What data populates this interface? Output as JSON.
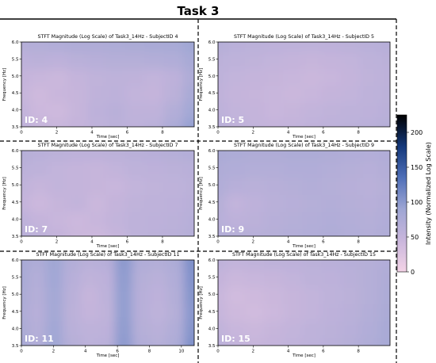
{
  "figure": {
    "title": "Task 3",
    "colorbar": {
      "label": "Intensity (Normalized Log Scale)",
      "min": 0,
      "max": 225,
      "ticks": [
        0,
        50,
        100,
        150,
        200
      ],
      "colors": [
        "#f3d3e6",
        "#c9b6dc",
        "#9ea6d4",
        "#4f6fb8",
        "#14387a",
        "#000000"
      ]
    }
  },
  "chart_data": [
    {
      "type": "heatmap",
      "title": "STFT Magnitude (Log Scale) of Task3_14Hz - SubjectID 4",
      "id_label": "ID: 4",
      "xlabel": "Time [sec]",
      "ylabel": "Frequency [Hz]",
      "xlim": [
        0,
        9.8
      ],
      "ylim": [
        3.5,
        6.0
      ],
      "x_ticks": [
        0,
        2,
        4,
        6,
        8
      ],
      "y_ticks": [
        3.5,
        4.0,
        4.5,
        5.0,
        5.5,
        6.0
      ],
      "time_bins": [
        0,
        1,
        2,
        3,
        4,
        5,
        6,
        7,
        8,
        9
      ],
      "freq_bins": [
        3.5,
        4.0,
        4.5,
        5.0,
        5.5,
        6.0
      ],
      "values": [
        [
          55,
          48,
          46,
          50,
          55,
          60,
          58,
          62,
          75,
          95
        ],
        [
          52,
          42,
          40,
          48,
          58,
          62,
          55,
          55,
          68,
          85
        ],
        [
          48,
          40,
          45,
          48,
          55,
          58,
          52,
          50,
          60,
          78
        ],
        [
          50,
          46,
          44,
          50,
          54,
          56,
          55,
          52,
          58,
          72
        ],
        [
          58,
          60,
          58,
          62,
          64,
          66,
          66,
          68,
          70,
          80
        ],
        [
          66,
          68,
          70,
          72,
          72,
          74,
          76,
          78,
          80,
          88
        ]
      ]
    },
    {
      "type": "heatmap",
      "title": "STFT Magnitude (Log Scale) of Task3_14Hz - SubjectID 5",
      "id_label": "ID: 5",
      "xlabel": "Time [sec]",
      "ylabel": "Frequency [Hz]",
      "xlim": [
        0,
        9.8
      ],
      "ylim": [
        3.5,
        6.0
      ],
      "x_ticks": [
        0,
        2,
        4,
        6,
        8
      ],
      "y_ticks": [
        3.5,
        4.0,
        4.5,
        5.0,
        5.5,
        6.0
      ],
      "time_bins": [
        0,
        1,
        2,
        3,
        4,
        5,
        6,
        7,
        8,
        9
      ],
      "freq_bins": [
        3.5,
        4.0,
        4.5,
        5.0,
        5.5,
        6.0
      ],
      "values": [
        [
          62,
          55,
          52,
          50,
          52,
          55,
          58,
          60,
          62,
          66
        ],
        [
          58,
          52,
          50,
          46,
          48,
          52,
          54,
          56,
          58,
          62
        ],
        [
          55,
          50,
          48,
          46,
          44,
          46,
          50,
          52,
          56,
          60
        ],
        [
          56,
          52,
          50,
          48,
          46,
          44,
          46,
          50,
          54,
          58
        ],
        [
          60,
          56,
          54,
          52,
          50,
          48,
          50,
          52,
          56,
          60
        ],
        [
          66,
          62,
          60,
          58,
          56,
          56,
          58,
          60,
          62,
          64
        ]
      ]
    },
    {
      "type": "heatmap",
      "title": "STFT Magnitude (Log Scale) of Task3_14Hz - SubjectID 7",
      "id_label": "ID: 7",
      "xlabel": "Time [sec]",
      "ylabel": "Frequency [Hz]",
      "xlim": [
        0,
        9.8
      ],
      "ylim": [
        3.5,
        6.0
      ],
      "x_ticks": [
        0,
        2,
        4,
        6,
        8
      ],
      "y_ticks": [
        3.5,
        4.0,
        4.5,
        5.0,
        5.5,
        6.0
      ],
      "time_bins": [
        0,
        1,
        2,
        3,
        4,
        5,
        6,
        7,
        8,
        9
      ],
      "freq_bins": [
        3.5,
        4.0,
        4.5,
        5.0,
        5.5,
        6.0
      ],
      "values": [
        [
          62,
          56,
          50,
          44,
          42,
          48,
          56,
          60,
          62,
          66
        ],
        [
          58,
          50,
          46,
          42,
          46,
          52,
          56,
          58,
          60,
          64
        ],
        [
          50,
          42,
          48,
          52,
          44,
          50,
          54,
          56,
          58,
          62
        ],
        [
          54,
          48,
          52,
          50,
          48,
          46,
          52,
          54,
          56,
          60
        ],
        [
          60,
          56,
          52,
          50,
          48,
          52,
          56,
          58,
          60,
          62
        ],
        [
          66,
          62,
          60,
          58,
          58,
          60,
          62,
          64,
          66,
          68
        ]
      ]
    },
    {
      "type": "heatmap",
      "title": "STFT Magnitude (Log Scale) of Task3_14Hz - SubjectID 9",
      "id_label": "ID: 9",
      "xlabel": "Time [sec]",
      "ylabel": "Frequency [Hz]",
      "xlim": [
        0,
        9.8
      ],
      "ylim": [
        3.5,
        6.0
      ],
      "x_ticks": [
        0,
        2,
        4,
        6,
        8
      ],
      "y_ticks": [
        3.5,
        4.0,
        4.5,
        5.0,
        5.5,
        6.0
      ],
      "time_bins": [
        0,
        1,
        2,
        3,
        4,
        5,
        6,
        7,
        8,
        9
      ],
      "freq_bins": [
        3.5,
        4.0,
        4.5,
        5.0,
        5.5,
        6.0
      ],
      "values": [
        [
          68,
          66,
          64,
          66,
          68,
          70,
          72,
          70,
          68,
          72
        ],
        [
          64,
          58,
          60,
          64,
          66,
          68,
          70,
          68,
          66,
          70
        ],
        [
          66,
          52,
          58,
          62,
          64,
          66,
          68,
          66,
          64,
          68
        ],
        [
          70,
          64,
          62,
          64,
          66,
          68,
          66,
          64,
          62,
          66
        ],
        [
          72,
          70,
          68,
          68,
          70,
          70,
          68,
          66,
          64,
          68
        ],
        [
          76,
          74,
          72,
          72,
          74,
          74,
          72,
          70,
          68,
          70
        ]
      ]
    },
    {
      "type": "heatmap",
      "title": "STFT Magnitude (Log Scale) of Task3_14Hz - SubjectID 11",
      "id_label": "ID: 11",
      "xlabel": "Time [sec]",
      "ylabel": "Frequency [Hz]",
      "xlim": [
        0,
        10.8
      ],
      "ylim": [
        3.5,
        6.0
      ],
      "x_ticks": [
        0,
        2,
        4,
        6,
        8,
        10
      ],
      "y_ticks": [
        3.5,
        4.0,
        4.5,
        5.0,
        5.5,
        6.0
      ],
      "time_bins": [
        0,
        1,
        2,
        3,
        4,
        5,
        6,
        7,
        8,
        9,
        10
      ],
      "freq_bins": [
        3.5,
        4.0,
        4.5,
        5.0,
        5.5,
        6.0
      ],
      "values": [
        [
          78,
          70,
          88,
          66,
          60,
          62,
          100,
          70,
          66,
          74,
          108
        ],
        [
          76,
          66,
          86,
          62,
          56,
          58,
          98,
          66,
          62,
          70,
          104
        ],
        [
          74,
          64,
          84,
          60,
          50,
          54,
          96,
          64,
          56,
          66,
          102
        ],
        [
          76,
          66,
          84,
          62,
          48,
          56,
          96,
          64,
          58,
          68,
          104
        ],
        [
          78,
          68,
          86,
          64,
          54,
          58,
          98,
          66,
          62,
          70,
          106
        ],
        [
          80,
          72,
          88,
          68,
          62,
          64,
          100,
          70,
          68,
          74,
          108
        ]
      ]
    },
    {
      "type": "heatmap",
      "title": "STFT Magnitude (Log Scale) of Task3_14Hz - SubjectID 15",
      "id_label": "ID: 15",
      "xlabel": "Time [sec]",
      "ylabel": "Frequency [Hz]",
      "xlim": [
        0,
        9.8
      ],
      "ylim": [
        3.5,
        6.0
      ],
      "x_ticks": [
        0,
        2,
        4,
        6,
        8
      ],
      "y_ticks": [
        3.5,
        4.0,
        4.5,
        5.0,
        5.5,
        6.0
      ],
      "time_bins": [
        0,
        1,
        2,
        3,
        4,
        5,
        6,
        7,
        8,
        9
      ],
      "freq_bins": [
        3.5,
        4.0,
        4.5,
        5.0,
        5.5,
        6.0
      ],
      "values": [
        [
          60,
          52,
          48,
          50,
          54,
          58,
          62,
          66,
          72,
          80
        ],
        [
          54,
          46,
          44,
          48,
          52,
          56,
          60,
          64,
          70,
          78
        ],
        [
          48,
          40,
          38,
          42,
          48,
          52,
          58,
          62,
          68,
          76
        ],
        [
          46,
          38,
          40,
          44,
          48,
          52,
          56,
          60,
          66,
          74
        ],
        [
          50,
          44,
          46,
          48,
          52,
          56,
          58,
          62,
          66,
          72
        ],
        [
          56,
          52,
          54,
          56,
          58,
          60,
          62,
          64,
          66,
          70
        ]
      ]
    }
  ]
}
